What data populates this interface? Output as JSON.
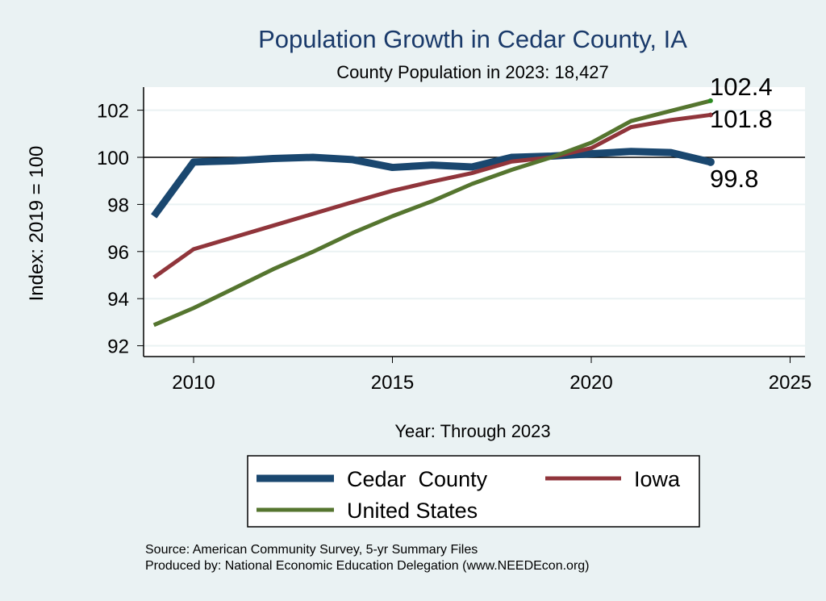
{
  "chart_data": {
    "type": "line",
    "title": "Population Growth in Cedar County, IA",
    "subtitle": "County Population in 2023: 18,427",
    "xlabel": "Year: Through 2023",
    "ylabel": "Index: 2019 = 100",
    "xlim": [
      2008.8,
      2025.4
    ],
    "ylim": [
      91.8,
      103
    ],
    "xticks": [
      2010,
      2015,
      2020,
      2025
    ],
    "yticks": [
      92,
      94,
      96,
      98,
      100,
      102
    ],
    "reference_line": 100,
    "grid": true,
    "legend_position": "bottom",
    "x": [
      2009,
      2010,
      2011,
      2012,
      2013,
      2014,
      2015,
      2016,
      2017,
      2018,
      2019,
      2020,
      2021,
      2022,
      2023
    ],
    "series": [
      {
        "name": "Cedar  County",
        "color": "#1a476f",
        "width": 9,
        "values": [
          97.5,
          99.8,
          99.85,
          99.95,
          100,
          99.9,
          99.57,
          99.67,
          99.59,
          100,
          100.05,
          100.15,
          100.25,
          100.2,
          99.8
        ],
        "end_label": "99.8"
      },
      {
        "name": "Iowa",
        "color": "#90353b",
        "width": 5,
        "values": [
          94.9,
          96.1,
          96.6,
          97.1,
          97.6,
          98.1,
          98.58,
          98.97,
          99.33,
          99.82,
          100,
          100.39,
          101.28,
          101.58,
          101.8
        ],
        "end_label": "101.8"
      },
      {
        "name": "United States",
        "color": "#55752f",
        "width": 5,
        "values": [
          92.88,
          93.6,
          94.42,
          95.25,
          95.99,
          96.79,
          97.5,
          98.14,
          98.87,
          99.47,
          100,
          100.62,
          101.54,
          101.97,
          102.4
        ],
        "end_label": "102.4"
      }
    ],
    "notes": [
      "Source: American Community Survey, 5-yr Summary Files",
      "Produced by: National Economic Education Delegation (www.NEEDEcon.org)"
    ]
  }
}
